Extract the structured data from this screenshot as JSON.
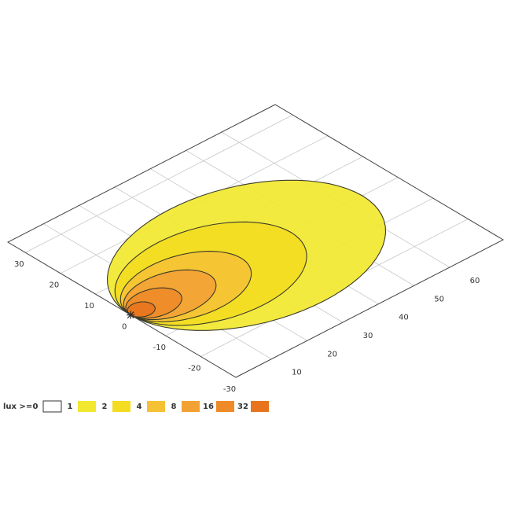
{
  "chart_data": {
    "type": "isolux",
    "xlim": [
      0,
      75
    ],
    "ylim": [
      -30,
      35
    ],
    "xticks": [
      10,
      20,
      30,
      40,
      50,
      60
    ],
    "yticks": [
      30,
      20,
      10,
      0,
      -10,
      -20,
      -30
    ],
    "grid": true,
    "legend_title": "lux >=",
    "levels": [
      0,
      1,
      2,
      4,
      8,
      16,
      32
    ],
    "colors": [
      "#ffffff",
      "#f2e830",
      "#f3dc22",
      "#f5c235",
      "#f2a235",
      "#ee8b28",
      "#e8751e"
    ],
    "contours": [
      {
        "reach": 65,
        "half_width": 22
      },
      {
        "reach": 45,
        "half_width": 15
      },
      {
        "reach": 31,
        "half_width": 10
      },
      {
        "reach": 22,
        "half_width": 7
      },
      {
        "reach": 13,
        "half_width": 4.5
      },
      {
        "reach": 6,
        "half_width": 2.5
      }
    ]
  }
}
